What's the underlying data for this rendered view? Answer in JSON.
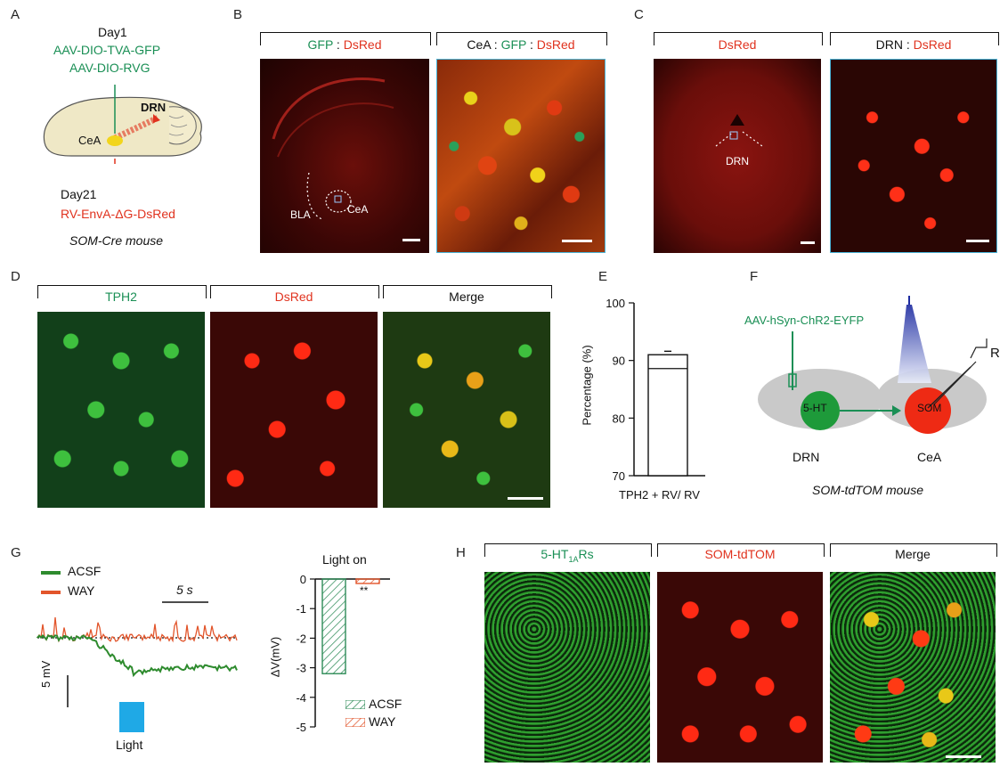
{
  "panels": {
    "A": "A",
    "B": "B",
    "C": "C",
    "D": "D",
    "E": "E",
    "F": "F",
    "G": "G",
    "H": "H"
  },
  "panelA": {
    "day1": "Day1",
    "virus1": "AAV-DIO-TVA-GFP",
    "virus2": "AAV-DIO-RVG",
    "drn": "DRN",
    "cea": "CeA",
    "day21": "Day21",
    "rv": "RV-EnvA-ΔG-DsRed",
    "mouse": "SOM-Cre mouse",
    "colors": {
      "green": "#1a8f55",
      "red": "#e0321e",
      "brain": "#efe8c6"
    }
  },
  "panelB": {
    "h1_green": "GFP",
    "h1_sep": " : ",
    "h1_red": "DsRed",
    "h2_black": "CeA : ",
    "h2_green": "GFP",
    "h2_sep": " : ",
    "h2_red": "DsRed",
    "bla": "BLA",
    "cea": "CeA"
  },
  "panelC": {
    "h1": "DsRed",
    "h2_black": "DRN : ",
    "h2_red": "DsRed",
    "drn": "DRN"
  },
  "panelD": {
    "h1": "TPH2",
    "h2": "DsRed",
    "h3": "Merge"
  },
  "panelE": {
    "ylabel": "Percentage (%)",
    "xlabel": "TPH2 + RV/ RV",
    "chart_data": {
      "type": "bar",
      "categories": [
        "TPH2 + RV/ RV"
      ],
      "values": [
        91
      ],
      "error": 0.6,
      "ylim": [
        70,
        100
      ],
      "yticks": [
        "100",
        "90",
        "80",
        "70"
      ]
    }
  },
  "panelF": {
    "virus": "AAV-hSyn-ChR2-EYFP",
    "ht": "5-HT",
    "som": "SOM",
    "r": "R",
    "drn": "DRN",
    "cea": "CeA",
    "mouse": "SOM-tdTOM mouse"
  },
  "panelG": {
    "legend_acsf": "ACSF",
    "legend_way": "WAY",
    "time_scale": "5 s",
    "volt_scale": "5 mV",
    "light": "Light",
    "bar_title": "Light on",
    "bar_ylabel": "ΔV(mV)",
    "sig": "**",
    "legend2_acsf": "ACSF",
    "legend2_way": "WAY",
    "chart_data": {
      "type": "bar",
      "categories": [
        "ACSF",
        "WAY"
      ],
      "values": [
        -3.2,
        -0.15
      ],
      "ylim": [
        -5,
        0
      ],
      "yticks": [
        "0",
        "-1",
        "-2",
        "-3",
        "-4",
        "-5"
      ],
      "colors": {
        "ACSF": "#2e8b57",
        "WAY": "#e2552b"
      }
    }
  },
  "panelH": {
    "h1": "5-HT",
    "h1_sub": "1A",
    "h1_tail": "Rs",
    "h2": "SOM-tdTOM",
    "h3": "Merge"
  }
}
